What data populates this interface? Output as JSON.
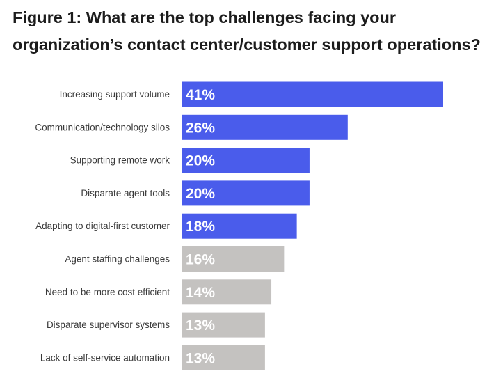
{
  "title": "Figure 1: What are the top challenges facing your organization’s contact center/customer support operations?",
  "colors": {
    "highlight": "#4A5CEB",
    "muted": "#C4C2C0"
  },
  "chart_data": {
    "type": "bar",
    "orientation": "horizontal",
    "title": "Figure 1: What are the top challenges facing your organization’s contact center/customer support operations?",
    "unit": "%",
    "categories": [
      "Increasing support volume",
      "Communication/technology silos",
      "Supporting remote work",
      "Disparate agent tools",
      "Adapting to digital-first customer",
      "Agent staffing challenges",
      "Need to be more cost efficient",
      "Disparate supervisor systems",
      "Lack of self-service automation"
    ],
    "values": [
      41,
      26,
      20,
      20,
      18,
      16,
      14,
      13,
      13
    ],
    "value_labels": [
      "41%",
      "26%",
      "20%",
      "20%",
      "18%",
      "16%",
      "14%",
      "13%",
      "13%"
    ],
    "highlighted": [
      true,
      true,
      true,
      true,
      true,
      false,
      false,
      false,
      false
    ],
    "grid": false,
    "legend": "none"
  }
}
